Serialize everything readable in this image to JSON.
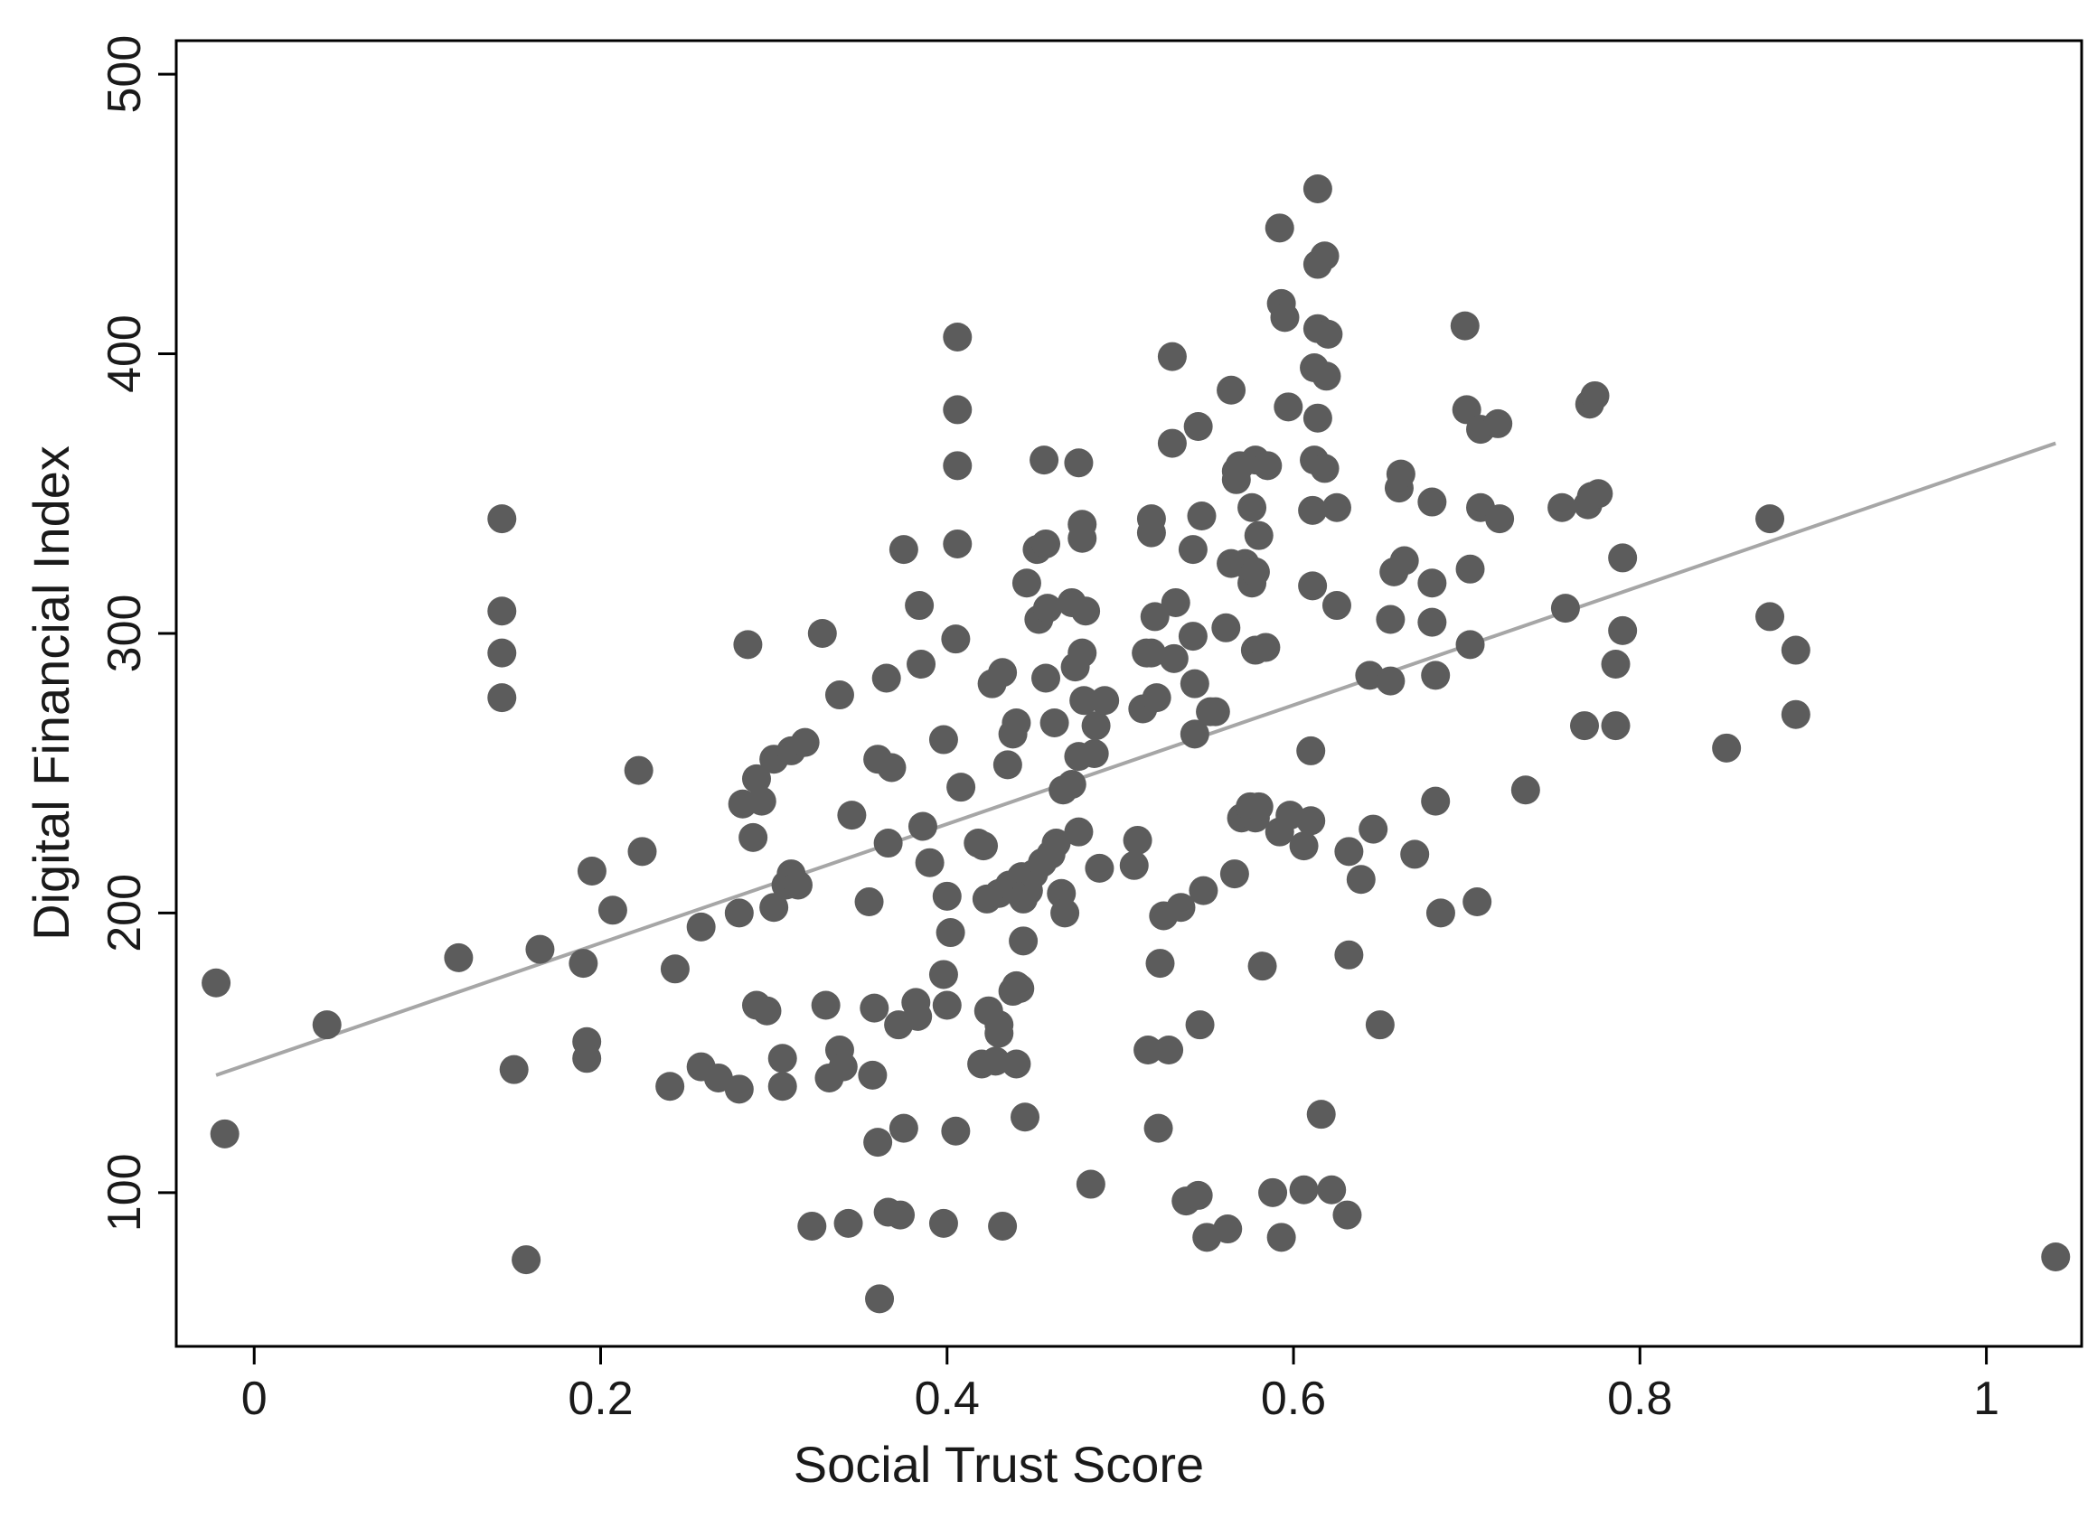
{
  "chart_data": {
    "type": "scatter",
    "xlabel": "Social Trust Score",
    "ylabel": "Digital Financial Index",
    "xlim": [
      -0.045,
      1.055
    ],
    "ylim": [
      45,
      512
    ],
    "x_ticks": [
      {
        "value": 0,
        "label": "0"
      },
      {
        "value": 0.2,
        "label": "0.2"
      },
      {
        "value": 0.4,
        "label": "0.4"
      },
      {
        "value": 0.6,
        "label": "0.6"
      },
      {
        "value": 0.8,
        "label": "0.8"
      },
      {
        "value": 1,
        "label": "1"
      }
    ],
    "y_ticks": [
      {
        "value": 100,
        "label": "100"
      },
      {
        "value": 200,
        "label": "200"
      },
      {
        "value": 300,
        "label": "300"
      },
      {
        "value": 400,
        "label": "400"
      },
      {
        "value": 500,
        "label": "500"
      }
    ],
    "grid": false,
    "legend": "none",
    "marker_color": "#5c5c5c",
    "fit_line_color": "#a6a6a6",
    "fit_line": {
      "x": [
        -0.022,
        1.04
      ],
      "y": [
        142,
        368
      ]
    },
    "points": [
      [
        -0.022,
        175
      ],
      [
        -0.017,
        121
      ],
      [
        0.042,
        160
      ],
      [
        0.118,
        184
      ],
      [
        0.143,
        341
      ],
      [
        0.143,
        308
      ],
      [
        0.143,
        293
      ],
      [
        0.143,
        277
      ],
      [
        0.15,
        144
      ],
      [
        0.157,
        76
      ],
      [
        0.165,
        187
      ],
      [
        0.19,
        182
      ],
      [
        0.192,
        154
      ],
      [
        0.192,
        148
      ],
      [
        0.195,
        215
      ],
      [
        0.207,
        201
      ],
      [
        0.222,
        251
      ],
      [
        0.224,
        222
      ],
      [
        0.24,
        138
      ],
      [
        0.243,
        180
      ],
      [
        0.258,
        145
      ],
      [
        0.258,
        195
      ],
      [
        0.268,
        141
      ],
      [
        0.28,
        137
      ],
      [
        0.28,
        200
      ],
      [
        0.282,
        239
      ],
      [
        0.285,
        296
      ],
      [
        0.288,
        227
      ],
      [
        0.29,
        248
      ],
      [
        0.29,
        167
      ],
      [
        0.293,
        240
      ],
      [
        0.296,
        165
      ],
      [
        0.3,
        202
      ],
      [
        0.3,
        255
      ],
      [
        0.305,
        148
      ],
      [
        0.305,
        138
      ],
      [
        0.307,
        210
      ],
      [
        0.31,
        258
      ],
      [
        0.31,
        214
      ],
      [
        0.314,
        210
      ],
      [
        0.318,
        261
      ],
      [
        0.322,
        88
      ],
      [
        0.328,
        300
      ],
      [
        0.33,
        167
      ],
      [
        0.332,
        141
      ],
      [
        0.338,
        278
      ],
      [
        0.338,
        151
      ],
      [
        0.34,
        145
      ],
      [
        0.343,
        89
      ],
      [
        0.345,
        235
      ],
      [
        0.355,
        204
      ],
      [
        0.357,
        142
      ],
      [
        0.358,
        166
      ],
      [
        0.36,
        118
      ],
      [
        0.36,
        255
      ],
      [
        0.361,
        62
      ],
      [
        0.365,
        284
      ],
      [
        0.366,
        93
      ],
      [
        0.366,
        225
      ],
      [
        0.368,
        252
      ],
      [
        0.372,
        160
      ],
      [
        0.373,
        92
      ],
      [
        0.375,
        123
      ],
      [
        0.375,
        330
      ],
      [
        0.382,
        168
      ],
      [
        0.383,
        163
      ],
      [
        0.384,
        310
      ],
      [
        0.385,
        289
      ],
      [
        0.386,
        231
      ],
      [
        0.39,
        218
      ],
      [
        0.398,
        89
      ],
      [
        0.398,
        262
      ],
      [
        0.398,
        178
      ],
      [
        0.4,
        206
      ],
      [
        0.4,
        167
      ],
      [
        0.402,
        193
      ],
      [
        0.405,
        298
      ],
      [
        0.405,
        122
      ],
      [
        0.406,
        406
      ],
      [
        0.406,
        380
      ],
      [
        0.406,
        360
      ],
      [
        0.406,
        332
      ],
      [
        0.408,
        245
      ],
      [
        0.418,
        225
      ],
      [
        0.42,
        146
      ],
      [
        0.421,
        224
      ],
      [
        0.423,
        205
      ],
      [
        0.424,
        165
      ],
      [
        0.426,
        282
      ],
      [
        0.428,
        147
      ],
      [
        0.43,
        160
      ],
      [
        0.43,
        207
      ],
      [
        0.43,
        157
      ],
      [
        0.432,
        88
      ],
      [
        0.432,
        286
      ],
      [
        0.435,
        253
      ],
      [
        0.436,
        210
      ],
      [
        0.438,
        264
      ],
      [
        0.438,
        172
      ],
      [
        0.44,
        174
      ],
      [
        0.44,
        146
      ],
      [
        0.44,
        268
      ],
      [
        0.442,
        173
      ],
      [
        0.443,
        213
      ],
      [
        0.444,
        190
      ],
      [
        0.444,
        205
      ],
      [
        0.445,
        127
      ],
      [
        0.446,
        318
      ],
      [
        0.447,
        208
      ],
      [
        0.45,
        214
      ],
      [
        0.452,
        330
      ],
      [
        0.453,
        305
      ],
      [
        0.455,
        218
      ],
      [
        0.456,
        362
      ],
      [
        0.457,
        332
      ],
      [
        0.457,
        284
      ],
      [
        0.458,
        309
      ],
      [
        0.46,
        221
      ],
      [
        0.462,
        268
      ],
      [
        0.463,
        225
      ],
      [
        0.466,
        207
      ],
      [
        0.467,
        244
      ],
      [
        0.468,
        200
      ],
      [
        0.472,
        246
      ],
      [
        0.472,
        311
      ],
      [
        0.474,
        288
      ],
      [
        0.476,
        256
      ],
      [
        0.476,
        229
      ],
      [
        0.476,
        361
      ],
      [
        0.478,
        339
      ],
      [
        0.478,
        334
      ],
      [
        0.478,
        293
      ],
      [
        0.479,
        276
      ],
      [
        0.48,
        308
      ],
      [
        0.483,
        103
      ],
      [
        0.485,
        257
      ],
      [
        0.486,
        267
      ],
      [
        0.488,
        216
      ],
      [
        0.491,
        276
      ],
      [
        0.508,
        217
      ],
      [
        0.51,
        226
      ],
      [
        0.513,
        273
      ],
      [
        0.515,
        293
      ],
      [
        0.516,
        151
      ],
      [
        0.518,
        293
      ],
      [
        0.518,
        341
      ],
      [
        0.518,
        336
      ],
      [
        0.52,
        306
      ],
      [
        0.521,
        277
      ],
      [
        0.522,
        123
      ],
      [
        0.523,
        182
      ],
      [
        0.525,
        199
      ],
      [
        0.528,
        151
      ],
      [
        0.53,
        368
      ],
      [
        0.53,
        399
      ],
      [
        0.531,
        291
      ],
      [
        0.532,
        311
      ],
      [
        0.535,
        202
      ],
      [
        0.538,
        97
      ],
      [
        0.542,
        330
      ],
      [
        0.542,
        299
      ],
      [
        0.543,
        282
      ],
      [
        0.543,
        264
      ],
      [
        0.545,
        99
      ],
      [
        0.545,
        374
      ],
      [
        0.546,
        160
      ],
      [
        0.547,
        342
      ],
      [
        0.548,
        208
      ],
      [
        0.55,
        84
      ],
      [
        0.552,
        272
      ],
      [
        0.555,
        272
      ],
      [
        0.561,
        302
      ],
      [
        0.562,
        87
      ],
      [
        0.564,
        325
      ],
      [
        0.564,
        387
      ],
      [
        0.566,
        214
      ],
      [
        0.567,
        355
      ],
      [
        0.567,
        358
      ],
      [
        0.569,
        360
      ],
      [
        0.57,
        234
      ],
      [
        0.572,
        325
      ],
      [
        0.575,
        238
      ],
      [
        0.576,
        318
      ],
      [
        0.576,
        345
      ],
      [
        0.578,
        234
      ],
      [
        0.578,
        294
      ],
      [
        0.578,
        362
      ],
      [
        0.578,
        322
      ],
      [
        0.58,
        238
      ],
      [
        0.58,
        335
      ],
      [
        0.582,
        181
      ],
      [
        0.584,
        295
      ],
      [
        0.585,
        360
      ],
      [
        0.588,
        100
      ],
      [
        0.592,
        229
      ],
      [
        0.592,
        445
      ],
      [
        0.593,
        84
      ],
      [
        0.593,
        418
      ],
      [
        0.595,
        413
      ],
      [
        0.597,
        381
      ],
      [
        0.598,
        235
      ],
      [
        0.606,
        101
      ],
      [
        0.606,
        224
      ],
      [
        0.61,
        258
      ],
      [
        0.61,
        233
      ],
      [
        0.611,
        317
      ],
      [
        0.611,
        344
      ],
      [
        0.612,
        362
      ],
      [
        0.612,
        395
      ],
      [
        0.614,
        377
      ],
      [
        0.614,
        409
      ],
      [
        0.614,
        459
      ],
      [
        0.614,
        432
      ],
      [
        0.616,
        128
      ],
      [
        0.618,
        435
      ],
      [
        0.618,
        359
      ],
      [
        0.619,
        392
      ],
      [
        0.62,
        407
      ],
      [
        0.622,
        101
      ],
      [
        0.625,
        345
      ],
      [
        0.625,
        310
      ],
      [
        0.631,
        92
      ],
      [
        0.632,
        185
      ],
      [
        0.632,
        222
      ],
      [
        0.639,
        212
      ],
      [
        0.644,
        285
      ],
      [
        0.646,
        230
      ],
      [
        0.65,
        160
      ],
      [
        0.656,
        305
      ],
      [
        0.656,
        283
      ],
      [
        0.658,
        322
      ],
      [
        0.661,
        352
      ],
      [
        0.662,
        357
      ],
      [
        0.664,
        326
      ],
      [
        0.67,
        221
      ],
      [
        0.68,
        318
      ],
      [
        0.68,
        347
      ],
      [
        0.68,
        304
      ],
      [
        0.682,
        285
      ],
      [
        0.682,
        240
      ],
      [
        0.685,
        200
      ],
      [
        0.699,
        410
      ],
      [
        0.7,
        380
      ],
      [
        0.702,
        323
      ],
      [
        0.702,
        296
      ],
      [
        0.706,
        204
      ],
      [
        0.708,
        373
      ],
      [
        0.708,
        345
      ],
      [
        0.718,
        375
      ],
      [
        0.719,
        341
      ],
      [
        0.734,
        244
      ],
      [
        0.755,
        345
      ],
      [
        0.757,
        309
      ],
      [
        0.768,
        267
      ],
      [
        0.77,
        346
      ],
      [
        0.771,
        382
      ],
      [
        0.772,
        349
      ],
      [
        0.774,
        385
      ],
      [
        0.776,
        350
      ],
      [
        0.786,
        289
      ],
      [
        0.786,
        267
      ],
      [
        0.79,
        327
      ],
      [
        0.79,
        301
      ],
      [
        0.85,
        259
      ],
      [
        0.875,
        306
      ],
      [
        0.875,
        341
      ],
      [
        0.89,
        294
      ],
      [
        0.89,
        271
      ],
      [
        1.04,
        77
      ]
    ]
  }
}
